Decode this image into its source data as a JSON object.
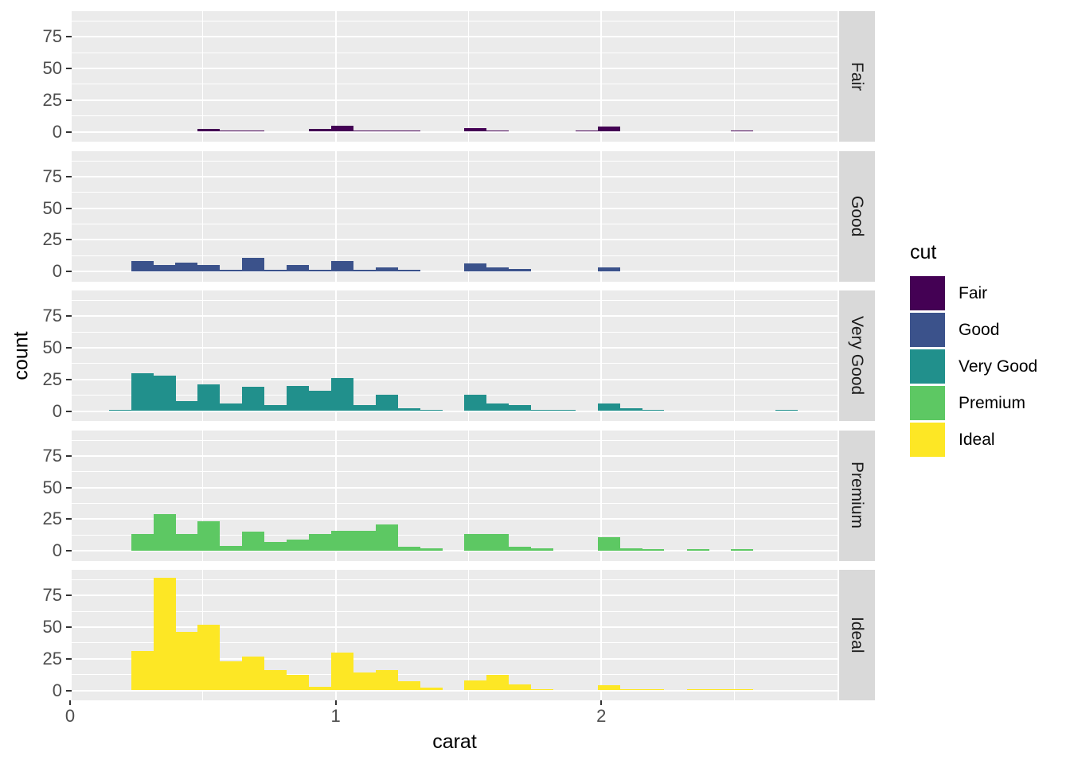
{
  "chart_data": {
    "type": "bar",
    "subtype": "faceted-histogram",
    "title": "",
    "xlabel": "carat",
    "ylabel": "count",
    "x_ticks": [
      "0",
      "1",
      "2"
    ],
    "x_tick_values": [
      0,
      1,
      2
    ],
    "y_ticks": [
      "0",
      "25",
      "50",
      "75"
    ],
    "y_tick_values": [
      0,
      25,
      50,
      75
    ],
    "x_minor_gridlines": [
      0.5,
      1.5,
      2.5
    ],
    "y_minor_gridlines": [
      12.5,
      37.5,
      62.5,
      87.5
    ],
    "xlim": [
      0,
      2.89
    ],
    "ylim": [
      -4.7,
      95.4
    ],
    "binwidth": 0.0837,
    "grid": true,
    "panel_background": "#EBEBEB",
    "strip_background": "#D9D9D9",
    "gridline_color": "#FFFFFF",
    "tick_label_color": "#4D4D4D",
    "legend": {
      "title": "cut",
      "position": "right"
    },
    "facets": [
      {
        "label": "Fair",
        "color": "#440154",
        "bars": [
          [
            0.481,
            2
          ],
          [
            0.565,
            1
          ],
          [
            0.648,
            1
          ],
          [
            0.899,
            2
          ],
          [
            0.983,
            5
          ],
          [
            1.067,
            1
          ],
          [
            1.15,
            1
          ],
          [
            1.234,
            1
          ],
          [
            1.485,
            3
          ],
          [
            1.569,
            1
          ],
          [
            1.903,
            1
          ],
          [
            1.987,
            4
          ],
          [
            2.489,
            1
          ]
        ]
      },
      {
        "label": "Good",
        "color": "#3B528B",
        "bars": [
          [
            0.23,
            8
          ],
          [
            0.314,
            5
          ],
          [
            0.397,
            7
          ],
          [
            0.481,
            5
          ],
          [
            0.565,
            1
          ],
          [
            0.648,
            11
          ],
          [
            0.732,
            1
          ],
          [
            0.816,
            5
          ],
          [
            0.899,
            1
          ],
          [
            0.983,
            8
          ],
          [
            1.067,
            1
          ],
          [
            1.15,
            3
          ],
          [
            1.234,
            1
          ],
          [
            1.485,
            6
          ],
          [
            1.569,
            3
          ],
          [
            1.652,
            2
          ],
          [
            1.987,
            3
          ]
        ]
      },
      {
        "label": "Very Good",
        "color": "#21908C",
        "bars": [
          [
            0.146,
            1
          ],
          [
            0.23,
            30
          ],
          [
            0.314,
            28
          ],
          [
            0.397,
            8
          ],
          [
            0.481,
            21
          ],
          [
            0.565,
            6
          ],
          [
            0.648,
            19
          ],
          [
            0.732,
            5
          ],
          [
            0.816,
            20
          ],
          [
            0.899,
            16
          ],
          [
            0.983,
            26
          ],
          [
            1.067,
            5
          ],
          [
            1.15,
            13
          ],
          [
            1.234,
            2
          ],
          [
            1.318,
            1
          ],
          [
            1.485,
            13
          ],
          [
            1.569,
            6
          ],
          [
            1.652,
            5
          ],
          [
            1.736,
            1
          ],
          [
            1.82,
            1
          ],
          [
            1.987,
            6
          ],
          [
            2.071,
            2
          ],
          [
            2.154,
            1
          ],
          [
            2.656,
            1
          ]
        ]
      },
      {
        "label": "Premium",
        "color": "#5DC863",
        "bars": [
          [
            0.23,
            13
          ],
          [
            0.314,
            29
          ],
          [
            0.397,
            13
          ],
          [
            0.481,
            23
          ],
          [
            0.565,
            4
          ],
          [
            0.648,
            15
          ],
          [
            0.732,
            7
          ],
          [
            0.816,
            9
          ],
          [
            0.899,
            13
          ],
          [
            0.983,
            16
          ],
          [
            1.067,
            16
          ],
          [
            1.15,
            21
          ],
          [
            1.234,
            3
          ],
          [
            1.318,
            2
          ],
          [
            1.485,
            13
          ],
          [
            1.569,
            13
          ],
          [
            1.652,
            3
          ],
          [
            1.736,
            2
          ],
          [
            1.987,
            11
          ],
          [
            2.071,
            2
          ],
          [
            2.154,
            1
          ],
          [
            2.322,
            1
          ],
          [
            2.489,
            1
          ]
        ]
      },
      {
        "label": "Ideal",
        "color": "#FDE725",
        "bars": [
          [
            0.23,
            31
          ],
          [
            0.314,
            89
          ],
          [
            0.397,
            46
          ],
          [
            0.481,
            52
          ],
          [
            0.565,
            23
          ],
          [
            0.648,
            27
          ],
          [
            0.732,
            16
          ],
          [
            0.816,
            12
          ],
          [
            0.899,
            3
          ],
          [
            0.983,
            30
          ],
          [
            1.067,
            14
          ],
          [
            1.15,
            16
          ],
          [
            1.234,
            7
          ],
          [
            1.318,
            2
          ],
          [
            1.485,
            8
          ],
          [
            1.569,
            12
          ],
          [
            1.652,
            5
          ],
          [
            1.736,
            1
          ],
          [
            1.987,
            4
          ],
          [
            2.071,
            1
          ],
          [
            2.154,
            1
          ],
          [
            2.322,
            1
          ],
          [
            2.405,
            1
          ],
          [
            2.489,
            1
          ]
        ]
      }
    ]
  }
}
